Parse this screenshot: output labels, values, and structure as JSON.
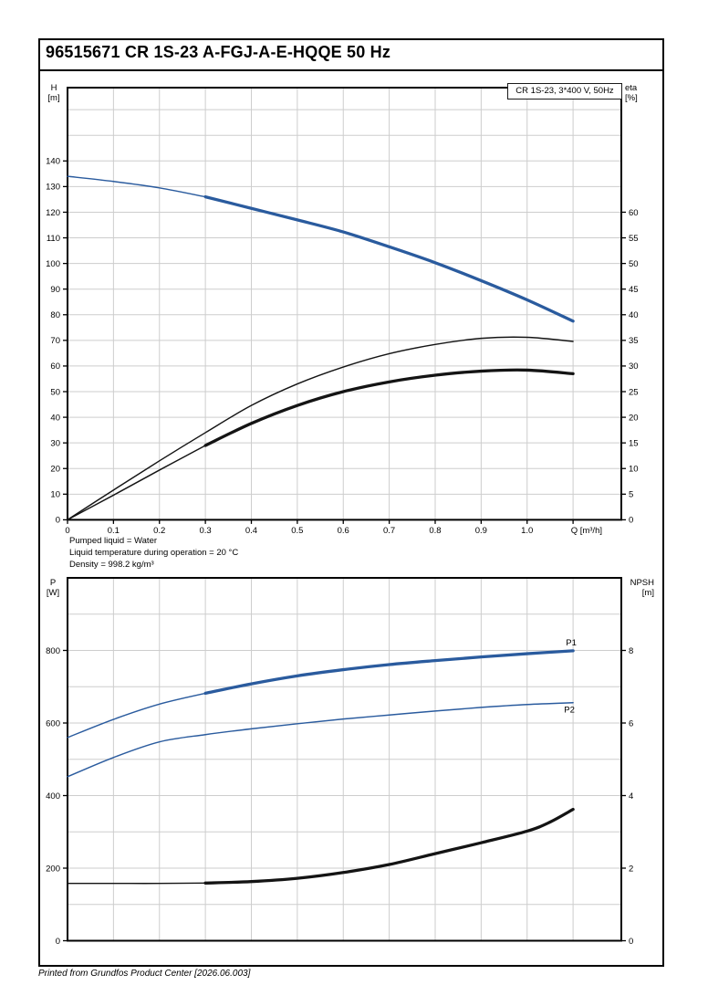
{
  "page": {
    "title": "96515671 CR 1S-23 A-FGJ-A-E-HQQE 50 Hz",
    "footer": "Printed from Grundfos Product Center [2026.06.003]"
  },
  "colors": {
    "blue": "#2a5b9e",
    "black": "#141414",
    "grid": "#cdcdcd",
    "axis": "#000000"
  },
  "legend": {
    "text": "CR 1S-23, 3*400 V, 50Hz"
  },
  "axis_labels": {
    "h_top": "H",
    "h_unit": "[m]",
    "eta_top": "eta",
    "eta_unit": "[%]",
    "p_top": "P",
    "p_unit": "[W]",
    "npsh_top": "NPSH",
    "npsh_unit": "[m]"
  },
  "notes": {
    "line1": "Pumped liquid = Water",
    "line2": "Liquid temperature during operation = 20 °C",
    "line3": "Density = 998.2 kg/m³"
  },
  "chart_data": [
    {
      "name": "qh-eta-chart",
      "type": "line",
      "x": {
        "label": "Q [m³/h]",
        "lim": [
          0,
          1.205
        ],
        "grid": [
          0.1,
          0.2,
          0.3,
          0.4,
          0.5,
          0.6,
          0.7,
          0.8,
          0.9,
          1.0,
          1.1
        ],
        "ticks": [
          0,
          0.1,
          0.2,
          0.3,
          0.4,
          0.5,
          0.6,
          0.7,
          0.8,
          0.9,
          1.0,
          1.1
        ],
        "labeled": [
          [
            0,
            "0"
          ],
          [
            0.1,
            "0.1"
          ],
          [
            0.2,
            "0.2"
          ],
          [
            0.3,
            "0.3"
          ],
          [
            0.4,
            "0.4"
          ],
          [
            0.5,
            "0.5"
          ],
          [
            0.6,
            "0.6"
          ],
          [
            0.7,
            "0.7"
          ],
          [
            0.8,
            "0.8"
          ],
          [
            0.9,
            "0.9"
          ],
          [
            1.0,
            "1.0"
          ]
        ]
      },
      "y_left": {
        "label": "H [m]",
        "lim": [
          0,
          168.6
        ],
        "grid": [
          10,
          20,
          30,
          40,
          50,
          60,
          70,
          80,
          90,
          100,
          110,
          120,
          130,
          140,
          150,
          160
        ],
        "ticks": [
          0,
          10,
          20,
          30,
          40,
          50,
          60,
          70,
          80,
          90,
          100,
          110,
          120,
          130,
          140
        ],
        "labeled": [
          [
            0,
            "0"
          ],
          [
            10,
            "10"
          ],
          [
            20,
            "20"
          ],
          [
            30,
            "30"
          ],
          [
            40,
            "40"
          ],
          [
            50,
            "50"
          ],
          [
            60,
            "60"
          ],
          [
            70,
            "70"
          ],
          [
            80,
            "80"
          ],
          [
            90,
            "90"
          ],
          [
            100,
            "100"
          ],
          [
            110,
            "110"
          ],
          [
            120,
            "120"
          ],
          [
            130,
            "130"
          ],
          [
            140,
            "140"
          ]
        ]
      },
      "y_right": {
        "label": "eta [%]",
        "lim": [
          0,
          84.3
        ],
        "grid": [],
        "ticks": [
          0,
          5,
          10,
          15,
          20,
          25,
          30,
          35,
          40,
          45,
          50,
          55,
          60
        ],
        "labeled": [
          [
            0,
            "0"
          ],
          [
            5,
            "5"
          ],
          [
            10,
            "10"
          ],
          [
            15,
            "15"
          ],
          [
            20,
            "20"
          ],
          [
            25,
            "25"
          ],
          [
            30,
            "30"
          ],
          [
            35,
            "35"
          ],
          [
            40,
            "40"
          ],
          [
            45,
            "45"
          ],
          [
            50,
            "50"
          ],
          [
            55,
            "55"
          ],
          [
            60,
            "60"
          ]
        ]
      },
      "series": [
        {
          "name": "head-curve",
          "axis": "left",
          "color": "blue",
          "bold_from": 0.3,
          "points": [
            [
              0,
              134
            ],
            [
              0.1,
              132
            ],
            [
              0.2,
              129.5
            ],
            [
              0.3,
              126
            ],
            [
              0.4,
              121.5
            ],
            [
              0.5,
              117
            ],
            [
              0.6,
              112.3
            ],
            [
              0.7,
              106.5
            ],
            [
              0.8,
              100.3
            ],
            [
              0.9,
              93.3
            ],
            [
              1.0,
              85.8
            ],
            [
              1.1,
              77.5
            ]
          ]
        },
        {
          "name": "eta-pump",
          "axis": "right",
          "color": "black",
          "bold_from": null,
          "points": [
            [
              0,
              0
            ],
            [
              0.1,
              5.8
            ],
            [
              0.2,
              11.5
            ],
            [
              0.3,
              17
            ],
            [
              0.4,
              22.3
            ],
            [
              0.5,
              26.5
            ],
            [
              0.6,
              29.8
            ],
            [
              0.7,
              32.4
            ],
            [
              0.8,
              34.2
            ],
            [
              0.9,
              35.4
            ],
            [
              1.0,
              35.6
            ],
            [
              1.1,
              34.8
            ]
          ]
        },
        {
          "name": "eta-pump-motor",
          "axis": "right",
          "color": "black",
          "bold_from": 0.3,
          "points": [
            [
              0,
              0
            ],
            [
              0.1,
              4.8
            ],
            [
              0.2,
              9.7
            ],
            [
              0.3,
              14.5
            ],
            [
              0.4,
              18.8
            ],
            [
              0.5,
              22.3
            ],
            [
              0.6,
              25.0
            ],
            [
              0.7,
              26.9
            ],
            [
              0.8,
              28.2
            ],
            [
              0.9,
              29.0
            ],
            [
              1.0,
              29.2
            ],
            [
              1.1,
              28.5
            ]
          ]
        }
      ]
    },
    {
      "name": "power-npsh-chart",
      "type": "line",
      "x": {
        "label": "",
        "lim": [
          0,
          1.205
        ],
        "grid": [
          0.1,
          0.2,
          0.3,
          0.4,
          0.5,
          0.6,
          0.7,
          0.8,
          0.9,
          1.0,
          1.1
        ],
        "ticks": [],
        "labeled": []
      },
      "y_left": {
        "label": "P [W]",
        "lim": [
          0,
          1000
        ],
        "grid": [
          100,
          200,
          300,
          400,
          500,
          600,
          700,
          800,
          900
        ],
        "ticks": [
          0,
          200,
          400,
          600,
          800
        ],
        "labeled": [
          [
            0,
            "0"
          ],
          [
            200,
            "200"
          ],
          [
            400,
            "400"
          ],
          [
            600,
            "600"
          ],
          [
            800,
            "800"
          ]
        ]
      },
      "y_right": {
        "label": "NPSH [m]",
        "lim": [
          0,
          10
        ],
        "grid": [],
        "ticks": [
          0,
          2,
          4,
          6,
          8
        ],
        "labeled": [
          [
            0,
            "0"
          ],
          [
            2,
            "2"
          ],
          [
            4,
            "4"
          ],
          [
            6,
            "6"
          ],
          [
            8,
            "8"
          ]
        ]
      },
      "series": [
        {
          "name": "p1-curve",
          "axis": "left",
          "color": "blue",
          "bold_from": 0.3,
          "label": "P1",
          "label_offset": [
            -2,
            -6
          ],
          "points": [
            [
              0,
              560
            ],
            [
              0.1,
              610
            ],
            [
              0.2,
              652
            ],
            [
              0.3,
              682
            ],
            [
              0.4,
              708
            ],
            [
              0.5,
              730
            ],
            [
              0.6,
              747
            ],
            [
              0.7,
              761
            ],
            [
              0.8,
              772
            ],
            [
              0.9,
              782
            ],
            [
              1.0,
              791
            ],
            [
              1.1,
              799
            ]
          ]
        },
        {
          "name": "p2-curve",
          "axis": "left",
          "color": "blue",
          "bold_from": null,
          "label": "P2",
          "label_offset": [
            -4,
            11
          ],
          "points": [
            [
              0,
              452
            ],
            [
              0.1,
              505
            ],
            [
              0.2,
              548
            ],
            [
              0.3,
              568
            ],
            [
              0.4,
              584
            ],
            [
              0.5,
              598
            ],
            [
              0.6,
              611
            ],
            [
              0.7,
              622
            ],
            [
              0.8,
              633
            ],
            [
              0.9,
              643
            ],
            [
              1.0,
              651
            ],
            [
              1.1,
              656
            ]
          ]
        },
        {
          "name": "npsh-curve",
          "axis": "right",
          "color": "black",
          "bold_from": 0.3,
          "points": [
            [
              0,
              1.58
            ],
            [
              0.1,
              1.58
            ],
            [
              0.2,
              1.58
            ],
            [
              0.3,
              1.59
            ],
            [
              0.4,
              1.63
            ],
            [
              0.5,
              1.72
            ],
            [
              0.6,
              1.88
            ],
            [
              0.7,
              2.1
            ],
            [
              0.8,
              2.4
            ],
            [
              0.9,
              2.7
            ],
            [
              1.0,
              3.02
            ],
            [
              1.05,
              3.27
            ],
            [
              1.1,
              3.62
            ]
          ]
        }
      ]
    }
  ]
}
